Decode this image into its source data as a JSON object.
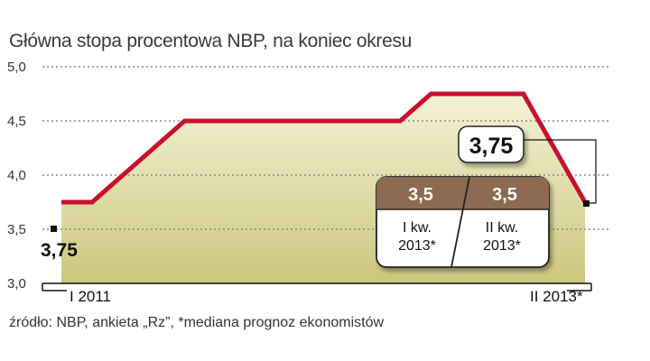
{
  "title": "Główna stopa procentowa NBP, na koniec okresu",
  "source": "źródło: NBP, ankieta „Rz”, *mediana prognoz ekonomistów",
  "colors": {
    "line": "#c8102e",
    "fill_top": "#f5f2d6",
    "fill_bottom": "#cbc77e",
    "forecast_header": "#8c6b52",
    "grid": "#8a8a8a",
    "axis": "#111111"
  },
  "chart_data": {
    "type": "line",
    "title": "Główna stopa procentowa NBP, na koniec okresu",
    "ylim": [
      3.0,
      5.0
    ],
    "yticks": [
      "5,0",
      "4,5",
      "4,0",
      "3,5",
      "3,0"
    ],
    "grid": true,
    "x_labels": {
      "start": "I 2011",
      "end": "II 2013*"
    },
    "series": [
      {
        "values": [
          3.75,
          3.75,
          4.0,
          4.25,
          4.5,
          4.5,
          4.5,
          4.5,
          4.5,
          4.5,
          4.5,
          4.5,
          4.75,
          4.75,
          4.75,
          4.75,
          4.25,
          3.75
        ]
      }
    ],
    "annotations": {
      "start_value": "3,75",
      "end_value": "3,75"
    },
    "forecast": [
      {
        "value": "3,5",
        "period_line1": "I kw.",
        "period_line2": "2013*"
      },
      {
        "value": "3,5",
        "period_line1": "II kw.",
        "period_line2": "2013*"
      }
    ]
  }
}
